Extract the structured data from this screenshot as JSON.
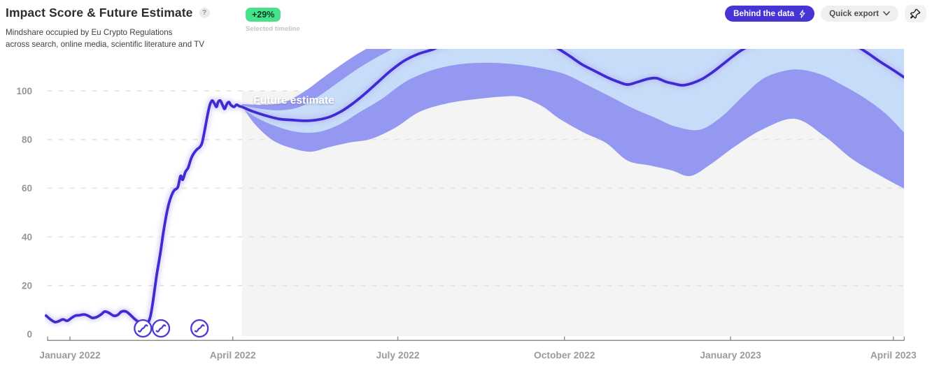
{
  "header": {
    "title": "Impact Score & Future Estimate",
    "help_icon": "?",
    "subtitle_line1": "Mindshare occupied by Eu Crypto Regulations",
    "subtitle_line2": "across search, online media, scientific literature and TV",
    "change_badge": "+29%",
    "selected_timeline_label": "Selected timeline",
    "behind_the_data_label": "Behind the data",
    "quick_export_label": "Quick export"
  },
  "colors": {
    "line": "#3e2bd1",
    "line_glow": "#a99cf5",
    "outer_band": "#9498f0",
    "inner_band": "#c7dcf8",
    "future_bg": "#f4f4f5",
    "gridline": "#e2e2e4",
    "axis": "#8f8f92",
    "x_tick_label": "#9b9b9e",
    "y_tick_label": "#96969a",
    "marker_stroke": "#4b38db",
    "future_label_text": "#ffffff",
    "badge_green": "#47e289",
    "accent_indigo": "#4734d4"
  },
  "chart_data": {
    "type": "line",
    "title": "Impact Score & Future Estimate",
    "x_unit": "months_since_january_2022_tick",
    "y_ticks": [
      {
        "v": 0,
        "label": "0"
      },
      {
        "v": 20,
        "label": "20"
      },
      {
        "v": 40,
        "label": "40"
      },
      {
        "v": 60,
        "label": "60"
      },
      {
        "v": 80,
        "label": "80"
      },
      {
        "v": 100,
        "label": "100"
      }
    ],
    "x_ticks": [
      {
        "m": 0,
        "label": "January 2022"
      },
      {
        "m": 2.99,
        "label": "April 2022"
      },
      {
        "m": 6.02,
        "label": "July 2022"
      },
      {
        "m": 9.08,
        "label": "October 2022"
      },
      {
        "m": 12.13,
        "label": "January 2023"
      },
      {
        "m": 15.12,
        "label": "April 2023"
      }
    ],
    "axis_end_ticks_m": [
      -0.41,
      15.32
    ],
    "ylim_visible": [
      0,
      117
    ],
    "grid": "dashed-horizontal",
    "legend_position": "none",
    "future_start_m": 3.16,
    "future_label": {
      "text": "Future estimate",
      "m": 3.37,
      "v": 94.7
    },
    "event_markers_m": [
      1.34,
      1.67,
      2.38
    ],
    "series": {
      "historical_median": [
        [
          -0.44,
          7.6
        ],
        [
          -0.36,
          6.1
        ],
        [
          -0.28,
          5.0
        ],
        [
          -0.21,
          5.3
        ],
        [
          -0.13,
          6.1
        ],
        [
          -0.05,
          5.5
        ],
        [
          0.03,
          6.7
        ],
        [
          0.1,
          7.6
        ],
        [
          0.18,
          7.8
        ],
        [
          0.26,
          8.1
        ],
        [
          0.33,
          7.6
        ],
        [
          0.41,
          6.7
        ],
        [
          0.49,
          7.0
        ],
        [
          0.57,
          8.1
        ],
        [
          0.64,
          9.3
        ],
        [
          0.72,
          8.7
        ],
        [
          0.8,
          7.6
        ],
        [
          0.87,
          7.8
        ],
        [
          0.95,
          9.3
        ],
        [
          1.03,
          9.3
        ],
        [
          1.1,
          8.1
        ],
        [
          1.18,
          6.4
        ],
        [
          1.26,
          5.0
        ],
        [
          1.34,
          4.1
        ],
        [
          1.4,
          3.8
        ],
        [
          1.44,
          5.0
        ],
        [
          1.48,
          7.6
        ],
        [
          1.53,
          14.4
        ],
        [
          1.59,
          23.9
        ],
        [
          1.66,
          33.4
        ],
        [
          1.72,
          42.6
        ],
        [
          1.79,
          51.2
        ],
        [
          1.85,
          56.1
        ],
        [
          1.91,
          59.0
        ],
        [
          1.98,
          60.4
        ],
        [
          2.03,
          65.0
        ],
        [
          2.07,
          63.5
        ],
        [
          2.12,
          66.7
        ],
        [
          2.17,
          68.4
        ],
        [
          2.22,
          71.9
        ],
        [
          2.27,
          74.2
        ],
        [
          2.33,
          75.9
        ],
        [
          2.38,
          76.8
        ],
        [
          2.42,
          78.2
        ],
        [
          2.45,
          81.1
        ],
        [
          2.49,
          85.7
        ],
        [
          2.53,
          90.5
        ],
        [
          2.57,
          94.3
        ],
        [
          2.61,
          96.0
        ],
        [
          2.65,
          94.9
        ],
        [
          2.69,
          93.4
        ],
        [
          2.72,
          95.4
        ],
        [
          2.76,
          96.0
        ],
        [
          2.8,
          94.3
        ],
        [
          2.84,
          92.6
        ],
        [
          2.88,
          94.6
        ],
        [
          2.92,
          95.4
        ],
        [
          2.95,
          94.3
        ],
        [
          3.01,
          93.4
        ],
        [
          3.06,
          94.3
        ],
        [
          3.11,
          93.7
        ],
        [
          3.16,
          93.4
        ]
      ],
      "future_median": [
        [
          3.16,
          93.4
        ],
        [
          3.34,
          91.7
        ],
        [
          3.57,
          90.0
        ],
        [
          3.83,
          88.5
        ],
        [
          4.09,
          88.0
        ],
        [
          4.34,
          87.7
        ],
        [
          4.57,
          88.2
        ],
        [
          4.78,
          89.4
        ],
        [
          4.99,
          91.7
        ],
        [
          5.2,
          94.9
        ],
        [
          5.42,
          98.9
        ],
        [
          5.65,
          103.5
        ],
        [
          5.88,
          108.1
        ],
        [
          6.14,
          112.4
        ],
        [
          6.4,
          115.2
        ],
        [
          6.66,
          117.0
        ],
        [
          6.94,
          119.6
        ],
        [
          7.32,
          121.6
        ],
        [
          7.71,
          122.4
        ],
        [
          8.09,
          122.4
        ],
        [
          8.48,
          121.3
        ],
        [
          8.8,
          119.3
        ],
        [
          8.99,
          117.0
        ],
        [
          9.19,
          114.1
        ],
        [
          9.4,
          110.9
        ],
        [
          9.64,
          108.1
        ],
        [
          9.87,
          105.5
        ],
        [
          10.07,
          103.7
        ],
        [
          10.24,
          102.6
        ],
        [
          10.43,
          103.7
        ],
        [
          10.61,
          104.9
        ],
        [
          10.77,
          105.2
        ],
        [
          10.95,
          103.7
        ],
        [
          11.1,
          102.9
        ],
        [
          11.25,
          102.3
        ],
        [
          11.43,
          103.2
        ],
        [
          11.61,
          104.9
        ],
        [
          11.79,
          107.5
        ],
        [
          11.97,
          110.6
        ],
        [
          12.15,
          113.8
        ],
        [
          12.33,
          116.7
        ],
        [
          12.53,
          119.0
        ],
        [
          12.85,
          121.3
        ],
        [
          13.23,
          122.7
        ],
        [
          13.62,
          123.0
        ],
        [
          14.0,
          121.9
        ],
        [
          14.29,
          120.1
        ],
        [
          14.49,
          117.8
        ],
        [
          14.67,
          115.2
        ],
        [
          14.85,
          112.4
        ],
        [
          15.03,
          109.8
        ],
        [
          15.17,
          107.8
        ],
        [
          15.32,
          105.5
        ]
      ],
      "inner_band_upper": [
        [
          3.16,
          94.0
        ],
        [
          3.5,
          92.6
        ],
        [
          3.86,
          92.0
        ],
        [
          4.22,
          93.4
        ],
        [
          4.56,
          97.7
        ],
        [
          4.91,
          103.2
        ],
        [
          5.27,
          108.9
        ],
        [
          5.59,
          113.2
        ],
        [
          5.88,
          116.7
        ],
        [
          6.1,
          119.3
        ],
        [
          6.42,
          121.9
        ],
        [
          7.06,
          124.7
        ],
        [
          10.28,
          125.9
        ],
        [
          15.32,
          125.9
        ]
      ],
      "inner_band_lower": [
        [
          3.16,
          92.8
        ],
        [
          3.47,
          88.5
        ],
        [
          3.79,
          85.4
        ],
        [
          4.17,
          83.1
        ],
        [
          4.56,
          83.1
        ],
        [
          4.95,
          86.2
        ],
        [
          5.33,
          91.4
        ],
        [
          5.72,
          96.6
        ],
        [
          6.1,
          102.9
        ],
        [
          6.42,
          106.6
        ],
        [
          6.81,
          109.5
        ],
        [
          7.26,
          111.2
        ],
        [
          7.77,
          111.5
        ],
        [
          8.29,
          110.6
        ],
        [
          8.74,
          108.9
        ],
        [
          9.12,
          106.6
        ],
        [
          9.51,
          102.3
        ],
        [
          9.96,
          97.2
        ],
        [
          10.34,
          92.8
        ],
        [
          10.73,
          89.1
        ],
        [
          11.11,
          85.4
        ],
        [
          11.56,
          84.0
        ],
        [
          11.95,
          89.1
        ],
        [
          12.33,
          97.2
        ],
        [
          12.72,
          104.9
        ],
        [
          13.1,
          108.1
        ],
        [
          13.42,
          108.7
        ],
        [
          13.81,
          106.6
        ],
        [
          14.19,
          102.3
        ],
        [
          14.58,
          97.2
        ],
        [
          14.97,
          90.8
        ],
        [
          15.32,
          82.8
        ]
      ],
      "outer_band_upper": [
        [
          3.16,
          94.6
        ],
        [
          3.53,
          94.3
        ],
        [
          3.92,
          95.2
        ],
        [
          4.3,
          99.7
        ],
        [
          4.69,
          106.1
        ],
        [
          5.07,
          112.1
        ],
        [
          5.33,
          115.8
        ],
        [
          5.59,
          119.0
        ],
        [
          5.91,
          122.4
        ],
        [
          6.42,
          125.3
        ],
        [
          7.71,
          127.0
        ],
        [
          10.28,
          127.0
        ],
        [
          15.32,
          127.0
        ]
      ],
      "outer_band_lower": [
        [
          3.16,
          93.7
        ],
        [
          3.4,
          86.2
        ],
        [
          3.73,
          79.6
        ],
        [
          4.11,
          76.2
        ],
        [
          4.43,
          75.0
        ],
        [
          4.75,
          76.8
        ],
        [
          5.14,
          78.8
        ],
        [
          5.52,
          80.2
        ],
        [
          5.97,
          84.8
        ],
        [
          6.42,
          91.4
        ],
        [
          6.94,
          94.9
        ],
        [
          7.45,
          96.6
        ],
        [
          7.97,
          97.7
        ],
        [
          8.29,
          97.4
        ],
        [
          8.67,
          93.7
        ],
        [
          8.99,
          88.5
        ],
        [
          9.44,
          82.8
        ],
        [
          9.85,
          78.5
        ],
        [
          10.24,
          71.3
        ],
        [
          10.66,
          69.3
        ],
        [
          11.05,
          67.3
        ],
        [
          11.39,
          65.0
        ],
        [
          11.75,
          69.6
        ],
        [
          12.2,
          77.0
        ],
        [
          12.72,
          84.2
        ],
        [
          13.32,
          88.5
        ],
        [
          13.87,
          81.1
        ],
        [
          14.35,
          72.2
        ],
        [
          14.84,
          65.6
        ],
        [
          15.32,
          59.8
        ]
      ]
    }
  }
}
